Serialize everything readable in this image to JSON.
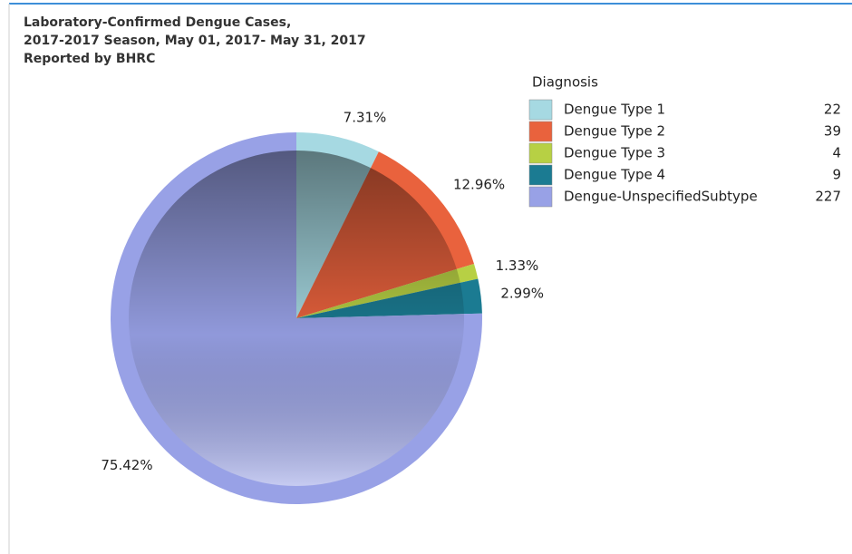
{
  "chart_data": {
    "type": "pie",
    "title": [
      "Laboratory-Confirmed Dengue Cases,",
      "2017-2017 Season, May 01, 2017- May 31, 2017",
      "Reported by BHRC"
    ],
    "legend_title": "Diagnosis",
    "categories": [
      "Dengue Type 1",
      "Dengue Type 2",
      "Dengue Type 3",
      "Dengue Type 4",
      "Dengue-UnspecifiedSubtype"
    ],
    "values": [
      7.31,
      12.96,
      1.33,
      2.99,
      75.42
    ],
    "value_labels": [
      "7.31%",
      "12.96%",
      "1.33%",
      "2.99%",
      "75.42%"
    ],
    "counts": [
      22,
      39,
      4,
      9,
      227
    ],
    "colors": [
      "#a6d9e2",
      "#e9623d",
      "#b7d044",
      "#1b7b92",
      "#98a1e6"
    ],
    "legend": "top-right"
  }
}
